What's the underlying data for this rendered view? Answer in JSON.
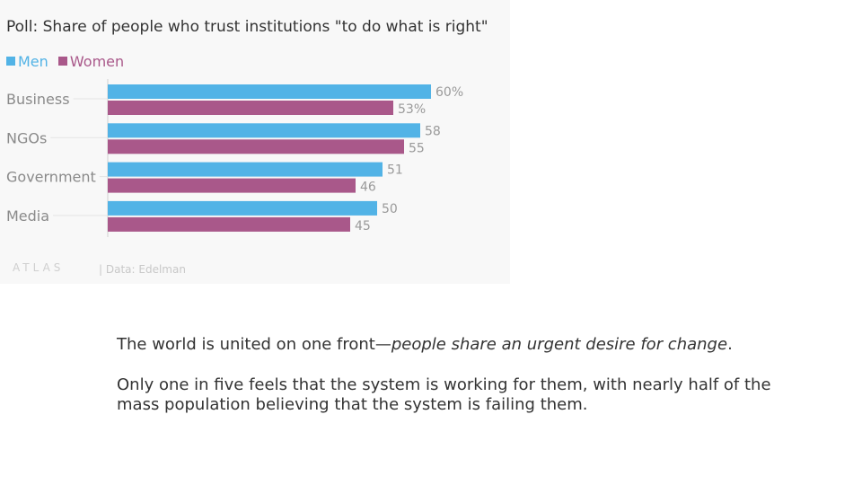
{
  "chart_data": {
    "type": "bar",
    "orientation": "horizontal",
    "title": "Poll: Share of people who trust institutions \"to do what is right\"",
    "categories": [
      "Business",
      "NGOs",
      "Government",
      "Media"
    ],
    "series": [
      {
        "name": "Men",
        "color": "#52b3e6",
        "values": [
          60,
          58,
          51,
          50
        ],
        "labels": [
          "60%",
          "58",
          "51",
          "50"
        ]
      },
      {
        "name": "Women",
        "color": "#a9588a",
        "values": [
          53,
          55,
          46,
          45
        ],
        "labels": [
          "53%",
          "55",
          "46",
          "45"
        ]
      }
    ],
    "xlim": [
      0,
      100
    ],
    "xlabel": "",
    "ylabel": ""
  },
  "footer": {
    "logo": "ATLAS",
    "source": "| Data: Edelman"
  },
  "caption": {
    "p1_prefix": "The world is united on one front—",
    "p1_emph": "people share an urgent desire for change",
    "p1_suffix": ".",
    "p2": "Only one in five feels that the system is working for them, with nearly half of the mass population believing that the system is failing them."
  }
}
